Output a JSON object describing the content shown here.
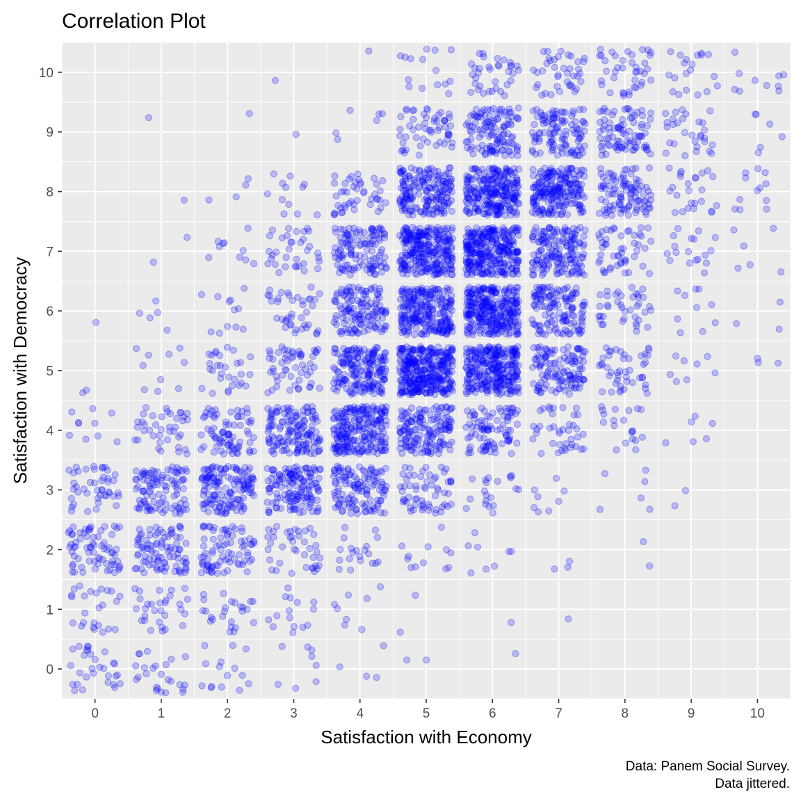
{
  "chart_data": {
    "type": "scatter",
    "title": "Correlation Plot",
    "xlabel": "Satisfaction with Economy",
    "ylabel": "Satisfaction with Democracy",
    "caption": [
      "Data: Panem Social Survey.",
      "Data jittered."
    ],
    "xlim": [
      -0.5,
      10.5
    ],
    "ylim": [
      -0.5,
      10.5
    ],
    "x_ticks": [
      "0",
      "1",
      "2",
      "3",
      "4",
      "5",
      "6",
      "7",
      "8",
      "9",
      "10"
    ],
    "y_ticks": [
      "0",
      "1",
      "2",
      "3",
      "4",
      "5",
      "6",
      "7",
      "8",
      "9",
      "10"
    ],
    "grid": true,
    "point_color": "#0000ff",
    "point_alpha": 0.22,
    "panel_background": "#ebebeb",
    "jitter": 0.4,
    "counts": [
      [
        30,
        25,
        15,
        8,
        4,
        2,
        1,
        0,
        0,
        0,
        0
      ],
      [
        25,
        30,
        25,
        15,
        8,
        2,
        1,
        1,
        0,
        0,
        0
      ],
      [
        70,
        90,
        80,
        40,
        20,
        12,
        8,
        3,
        2,
        0,
        0
      ],
      [
        45,
        100,
        140,
        140,
        120,
        60,
        20,
        8,
        6,
        2,
        0
      ],
      [
        10,
        40,
        75,
        140,
        220,
        150,
        90,
        40,
        20,
        6,
        0
      ],
      [
        2,
        10,
        30,
        55,
        180,
        340,
        280,
        120,
        45,
        8,
        3
      ],
      [
        1,
        5,
        12,
        40,
        130,
        240,
        300,
        130,
        40,
        10,
        3
      ],
      [
        0,
        2,
        10,
        35,
        120,
        270,
        300,
        160,
        50,
        18,
        6
      ],
      [
        0,
        1,
        4,
        12,
        45,
        180,
        250,
        210,
        100,
        25,
        12
      ],
      [
        0,
        1,
        1,
        1,
        6,
        55,
        120,
        110,
        85,
        30,
        6
      ],
      [
        0,
        0,
        0,
        1,
        1,
        15,
        35,
        40,
        40,
        20,
        10
      ]
    ]
  }
}
